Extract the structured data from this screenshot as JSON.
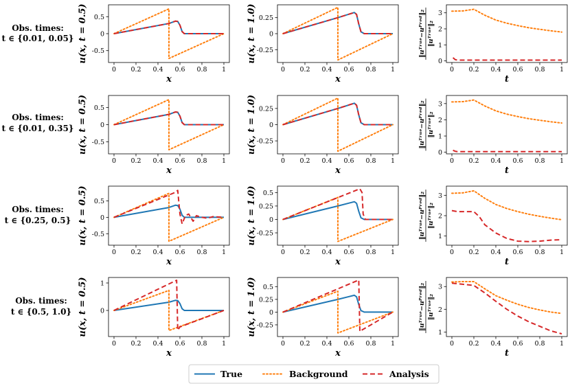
{
  "figure": {
    "row_labels": [
      {
        "line1": "Obs. times:",
        "line2": "t ∈ {0.01, 0.05}"
      },
      {
        "line1": "Obs. times:",
        "line2": "t ∈ {0.01, 0.35}"
      },
      {
        "line1": "Obs. times:",
        "line2": "t ∈ {0.25, 0.5}"
      },
      {
        "line1": "Obs. times:",
        "line2": "t ∈ {0.5, 1.0}"
      }
    ],
    "legend": {
      "true": "True",
      "background": "Background",
      "analysis": "Analysis"
    },
    "colors": {
      "true": "#1f77b4",
      "background": "#ff7f0e",
      "analysis": "#d62728"
    }
  },
  "chart_data": [
    {
      "type": "line",
      "row": 0,
      "col": 0,
      "title": "",
      "xlabel": "x",
      "ylabel": "u(x, t = 0.5)",
      "xlim": [
        -0.05,
        1.05
      ],
      "ylim": [
        -0.85,
        0.85
      ],
      "xticks": [
        0.0,
        0.2,
        0.4,
        0.6,
        0.8,
        1.0
      ],
      "yticks": [
        -0.5,
        0.0,
        0.5
      ],
      "series": [
        {
          "name": "True",
          "style": "solid",
          "x": [
            0,
            0.5,
            0.56,
            0.58,
            0.6,
            0.62,
            0.64,
            1.0
          ],
          "y": [
            0,
            0.3,
            0.37,
            0.36,
            0.25,
            0.06,
            0.0,
            0.0
          ]
        },
        {
          "name": "Background",
          "style": "dotted",
          "x": [
            0,
            0.5,
            0.5,
            1.0
          ],
          "y": [
            0,
            0.73,
            -0.73,
            0
          ]
        },
        {
          "name": "Analysis",
          "style": "dashed",
          "x": [
            0,
            0.5,
            0.56,
            0.58,
            0.6,
            0.62,
            0.64,
            1.0
          ],
          "y": [
            0,
            0.3,
            0.37,
            0.36,
            0.25,
            0.06,
            0.0,
            0.0
          ]
        }
      ]
    },
    {
      "type": "line",
      "row": 0,
      "col": 1,
      "title": "",
      "xlabel": "x",
      "ylabel": "u(x, t = 1.0)",
      "xlim": [
        -0.05,
        1.05
      ],
      "ylim": [
        -0.45,
        0.45
      ],
      "xticks": [
        0.0,
        0.2,
        0.4,
        0.6,
        0.8,
        1.0
      ],
      "yticks": [
        -0.25,
        0.0,
        0.25
      ],
      "series": [
        {
          "name": "True",
          "style": "solid",
          "x": [
            0,
            0.5,
            0.65,
            0.67,
            0.69,
            0.71,
            0.74,
            1.0
          ],
          "y": [
            0,
            0.25,
            0.33,
            0.3,
            0.15,
            0.03,
            0,
            0
          ]
        },
        {
          "name": "Background",
          "style": "dotted",
          "x": [
            0,
            0.5,
            0.5,
            1.0
          ],
          "y": [
            0,
            0.41,
            -0.41,
            0
          ]
        },
        {
          "name": "Analysis",
          "style": "dashed",
          "x": [
            0,
            0.5,
            0.65,
            0.67,
            0.69,
            0.71,
            0.74,
            1.0
          ],
          "y": [
            0,
            0.25,
            0.33,
            0.3,
            0.15,
            0.03,
            0,
            0
          ]
        }
      ]
    },
    {
      "type": "line",
      "row": 0,
      "col": 2,
      "title": "",
      "xlabel": "t",
      "ylabel": "||u^True − u^Pred||_2 / ||u^True||_2",
      "xlim": [
        -0.05,
        1.05
      ],
      "ylim": [
        -0.1,
        3.5
      ],
      "xticks": [
        0.0,
        0.2,
        0.4,
        0.6,
        0.8,
        1.0
      ],
      "yticks": [
        0,
        1,
        2,
        3
      ],
      "series": [
        {
          "name": "Background",
          "style": "dotted",
          "x": [
            0,
            0.1,
            0.2,
            0.3,
            0.4,
            0.5,
            0.6,
            0.7,
            0.8,
            0.9,
            1.0
          ],
          "y": [
            3.1,
            3.12,
            3.22,
            2.85,
            2.55,
            2.35,
            2.2,
            2.07,
            1.97,
            1.88,
            1.8
          ]
        },
        {
          "name": "Analysis",
          "style": "dashed",
          "x": [
            0.01,
            0.03,
            0.05,
            0.1,
            0.2,
            0.4,
            0.6,
            0.8,
            1.0
          ],
          "y": [
            0.2,
            0.08,
            0.05,
            0.05,
            0.05,
            0.05,
            0.05,
            0.05,
            0.05
          ]
        }
      ]
    },
    {
      "type": "line",
      "row": 1,
      "col": 0,
      "title": "",
      "xlabel": "x",
      "ylabel": "u(x, t = 0.5)",
      "xlim": [
        -0.05,
        1.05
      ],
      "ylim": [
        -0.85,
        0.85
      ],
      "xticks": [
        0.0,
        0.2,
        0.4,
        0.6,
        0.8,
        1.0
      ],
      "yticks": [
        -0.5,
        0.0,
        0.5
      ],
      "series": [
        {
          "name": "True",
          "style": "solid",
          "x": [
            0,
            0.5,
            0.56,
            0.58,
            0.6,
            0.62,
            0.64,
            1.0
          ],
          "y": [
            0,
            0.3,
            0.37,
            0.36,
            0.25,
            0.06,
            0.0,
            0.0
          ]
        },
        {
          "name": "Background",
          "style": "dotted",
          "x": [
            0,
            0.5,
            0.5,
            1.0
          ],
          "y": [
            0,
            0.73,
            -0.73,
            0
          ]
        },
        {
          "name": "Analysis",
          "style": "dashed",
          "x": [
            0,
            0.5,
            0.56,
            0.58,
            0.6,
            0.62,
            0.64,
            1.0
          ],
          "y": [
            0,
            0.3,
            0.37,
            0.36,
            0.25,
            0.06,
            0.0,
            0.0
          ]
        }
      ]
    },
    {
      "type": "line",
      "row": 1,
      "col": 1,
      "title": "",
      "xlabel": "x",
      "ylabel": "u(x, t = 1.0)",
      "xlim": [
        -0.05,
        1.05
      ],
      "ylim": [
        -0.45,
        0.45
      ],
      "xticks": [
        0.0,
        0.2,
        0.4,
        0.6,
        0.8,
        1.0
      ],
      "yticks": [
        -0.25,
        0.0,
        0.25
      ],
      "series": [
        {
          "name": "True",
          "style": "solid",
          "x": [
            0,
            0.5,
            0.65,
            0.67,
            0.69,
            0.71,
            0.74,
            1.0
          ],
          "y": [
            0,
            0.25,
            0.33,
            0.3,
            0.15,
            0.03,
            0,
            0
          ]
        },
        {
          "name": "Background",
          "style": "dotted",
          "x": [
            0,
            0.5,
            0.5,
            1.0
          ],
          "y": [
            0,
            0.41,
            -0.41,
            0
          ]
        },
        {
          "name": "Analysis",
          "style": "dashed",
          "x": [
            0,
            0.5,
            0.65,
            0.67,
            0.69,
            0.71,
            0.74,
            1.0
          ],
          "y": [
            0,
            0.25,
            0.33,
            0.3,
            0.15,
            0.03,
            0,
            0
          ]
        }
      ]
    },
    {
      "type": "line",
      "row": 1,
      "col": 2,
      "title": "",
      "xlabel": "t",
      "ylabel": "||u^True − u^Pred||_2 / ||u^True||_2",
      "xlim": [
        -0.05,
        1.05
      ],
      "ylim": [
        -0.1,
        3.5
      ],
      "xticks": [
        0.0,
        0.2,
        0.4,
        0.6,
        0.8,
        1.0
      ],
      "yticks": [
        0,
        1,
        2,
        3
      ],
      "series": [
        {
          "name": "Background",
          "style": "dotted",
          "x": [
            0,
            0.1,
            0.2,
            0.3,
            0.4,
            0.5,
            0.6,
            0.7,
            0.8,
            0.9,
            1.0
          ],
          "y": [
            3.1,
            3.12,
            3.22,
            2.85,
            2.55,
            2.35,
            2.2,
            2.07,
            1.97,
            1.88,
            1.8
          ]
        },
        {
          "name": "Analysis",
          "style": "dashed",
          "x": [
            0.01,
            0.03,
            0.05,
            0.1,
            0.2,
            0.4,
            0.6,
            0.8,
            1.0
          ],
          "y": [
            0.12,
            0.06,
            0.04,
            0.04,
            0.04,
            0.04,
            0.04,
            0.04,
            0.04
          ]
        }
      ]
    },
    {
      "type": "line",
      "row": 2,
      "col": 0,
      "title": "",
      "xlabel": "x",
      "ylabel": "u(x, t = 0.5)",
      "xlim": [
        -0.05,
        1.05
      ],
      "ylim": [
        -0.85,
        0.95
      ],
      "xticks": [
        0.0,
        0.2,
        0.4,
        0.6,
        0.8,
        1.0
      ],
      "yticks": [
        -0.5,
        0.0,
        0.5
      ],
      "series": [
        {
          "name": "True",
          "style": "solid",
          "x": [
            0,
            0.5,
            0.56,
            0.58,
            0.6,
            0.62,
            0.64,
            1.0
          ],
          "y": [
            0,
            0.3,
            0.37,
            0.36,
            0.25,
            0.06,
            0.0,
            0.0
          ]
        },
        {
          "name": "Background",
          "style": "dotted",
          "x": [
            0,
            0.5,
            0.5,
            1.0
          ],
          "y": [
            0,
            0.73,
            -0.73,
            0
          ]
        },
        {
          "name": "Analysis",
          "style": "dashed",
          "x": [
            0,
            0.55,
            0.58,
            0.6,
            0.62,
            0.65,
            0.68,
            0.72,
            0.75,
            0.8,
            0.85,
            0.9,
            1.0
          ],
          "y": [
            0,
            0.75,
            0.82,
            0.1,
            -0.2,
            0.05,
            0.1,
            -0.12,
            0.05,
            0.0,
            -0.03,
            0.02,
            0.0
          ]
        }
      ]
    },
    {
      "type": "line",
      "row": 2,
      "col": 1,
      "title": "",
      "xlabel": "x",
      "ylabel": "u(x, t = 1.0)",
      "xlim": [
        -0.05,
        1.05
      ],
      "ylim": [
        -0.48,
        0.62
      ],
      "xticks": [
        0.0,
        0.2,
        0.4,
        0.6,
        0.8,
        1.0
      ],
      "yticks": [
        -0.25,
        0.0,
        0.25,
        0.5
      ],
      "series": [
        {
          "name": "True",
          "style": "solid",
          "x": [
            0,
            0.5,
            0.65,
            0.67,
            0.69,
            0.71,
            0.74,
            1.0
          ],
          "y": [
            0,
            0.25,
            0.33,
            0.3,
            0.15,
            0.03,
            0,
            0
          ]
        },
        {
          "name": "Background",
          "style": "dotted",
          "x": [
            0,
            0.5,
            0.5,
            1.0
          ],
          "y": [
            0,
            0.41,
            -0.41,
            0
          ]
        },
        {
          "name": "Analysis",
          "style": "dashed",
          "x": [
            0,
            0.7,
            0.72,
            0.73,
            0.75,
            0.78,
            1.0
          ],
          "y": [
            0,
            0.57,
            0.5,
            0.1,
            0.0,
            0.0,
            0.0
          ]
        }
      ]
    },
    {
      "type": "line",
      "row": 2,
      "col": 2,
      "title": "",
      "xlabel": "t",
      "ylabel": "||u^True − u^Pred||_2 / ||u^True||_2",
      "xlim": [
        -0.05,
        1.05
      ],
      "ylim": [
        0.55,
        3.45
      ],
      "xticks": [
        0.0,
        0.2,
        0.4,
        0.6,
        0.8,
        1.0
      ],
      "yticks": [
        1,
        2,
        3
      ],
      "series": [
        {
          "name": "Background",
          "style": "dotted",
          "x": [
            0,
            0.1,
            0.2,
            0.3,
            0.4,
            0.5,
            0.6,
            0.7,
            0.8,
            0.9,
            1.0
          ],
          "y": [
            3.1,
            3.12,
            3.22,
            2.85,
            2.55,
            2.35,
            2.2,
            2.07,
            1.97,
            1.88,
            1.8
          ]
        },
        {
          "name": "Analysis",
          "style": "dashed",
          "x": [
            0,
            0.05,
            0.1,
            0.2,
            0.25,
            0.3,
            0.4,
            0.5,
            0.6,
            0.7,
            0.8,
            0.9,
            1.0
          ],
          "y": [
            2.25,
            2.2,
            2.2,
            2.2,
            1.95,
            1.55,
            1.15,
            0.88,
            0.75,
            0.73,
            0.75,
            0.8,
            0.82
          ]
        }
      ]
    },
    {
      "type": "line",
      "row": 3,
      "col": 0,
      "title": "",
      "xlabel": "x",
      "ylabel": "u(x, t = 0.5)",
      "xlim": [
        -0.05,
        1.05
      ],
      "ylim": [
        -0.95,
        1.2
      ],
      "xticks": [
        0.0,
        0.2,
        0.4,
        0.6,
        0.8,
        1.0
      ],
      "yticks": [
        0,
        1
      ],
      "series": [
        {
          "name": "True",
          "style": "solid",
          "x": [
            0,
            0.5,
            0.56,
            0.58,
            0.6,
            0.62,
            0.64,
            1.0
          ],
          "y": [
            0,
            0.3,
            0.37,
            0.36,
            0.25,
            0.06,
            0.0,
            0.0
          ]
        },
        {
          "name": "Background",
          "style": "dotted",
          "x": [
            0,
            0.5,
            0.5,
            1.0
          ],
          "y": [
            0,
            0.73,
            -0.73,
            0
          ]
        },
        {
          "name": "Analysis",
          "style": "dashed",
          "x": [
            0,
            0.57,
            0.58,
            0.6,
            1.0
          ],
          "y": [
            0,
            1.1,
            -0.72,
            -0.6,
            0
          ]
        }
      ]
    },
    {
      "type": "line",
      "row": 3,
      "col": 1,
      "title": "",
      "xlabel": "x",
      "ylabel": "u(x, t = 1.0)",
      "xlim": [
        -0.05,
        1.05
      ],
      "ylim": [
        -0.48,
        0.68
      ],
      "xticks": [
        0.0,
        0.2,
        0.4,
        0.6,
        0.8,
        1.0
      ],
      "yticks": [
        -0.25,
        0.0,
        0.25,
        0.5
      ],
      "series": [
        {
          "name": "True",
          "style": "solid",
          "x": [
            0,
            0.5,
            0.65,
            0.67,
            0.69,
            0.71,
            0.74,
            1.0
          ],
          "y": [
            0,
            0.25,
            0.33,
            0.3,
            0.15,
            0.03,
            0,
            0
          ]
        },
        {
          "name": "Background",
          "style": "dotted",
          "x": [
            0,
            0.5,
            0.5,
            1.0
          ],
          "y": [
            0,
            0.41,
            -0.41,
            0
          ]
        },
        {
          "name": "Analysis",
          "style": "dashed",
          "x": [
            0,
            0.69,
            0.7,
            0.72,
            1.0
          ],
          "y": [
            0,
            0.63,
            -0.38,
            -0.35,
            0
          ]
        }
      ]
    },
    {
      "type": "line",
      "row": 3,
      "col": 2,
      "title": "",
      "xlabel": "t",
      "ylabel": "||u^True − u^Pred||_2 / ||u^True||_2",
      "xlim": [
        -0.05,
        1.05
      ],
      "ylim": [
        0.8,
        3.4
      ],
      "xticks": [
        0.0,
        0.2,
        0.4,
        0.6,
        0.8,
        1.0
      ],
      "yticks": [
        1,
        2,
        3
      ],
      "series": [
        {
          "name": "Background",
          "style": "dotted",
          "x": [
            0,
            0.1,
            0.2,
            0.3,
            0.4,
            0.5,
            0.6,
            0.7,
            0.8,
            0.9,
            1.0
          ],
          "y": [
            3.2,
            3.22,
            3.22,
            2.9,
            2.6,
            2.4,
            2.22,
            2.08,
            1.97,
            1.88,
            1.82
          ]
        },
        {
          "name": "Analysis",
          "style": "dashed",
          "x": [
            0,
            0.1,
            0.2,
            0.3,
            0.4,
            0.5,
            0.6,
            0.7,
            0.8,
            0.9,
            1.0
          ],
          "y": [
            3.15,
            3.1,
            3.05,
            2.72,
            2.35,
            2.0,
            1.7,
            1.45,
            1.25,
            1.05,
            0.92
          ]
        }
      ]
    }
  ]
}
